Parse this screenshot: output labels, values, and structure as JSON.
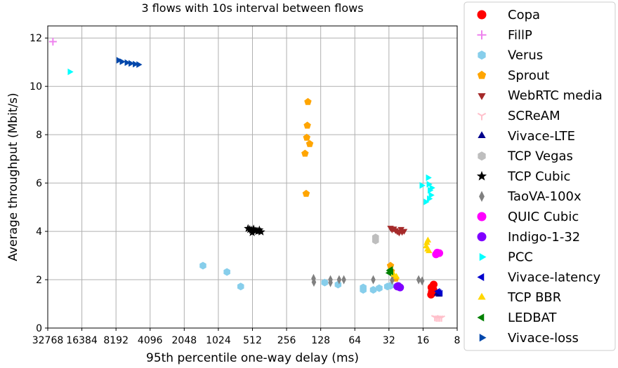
{
  "chart_data": {
    "type": "scatter",
    "title": "3 flows with 10s interval between flows",
    "xlabel": "95th percentile one-way delay (ms)",
    "ylabel": "Average throughput (Mbit/s)",
    "x_scale": "log2",
    "x_reversed": true,
    "xlim": [
      32768,
      8
    ],
    "ylim": [
      0,
      12.5
    ],
    "x_ticks": [
      32768,
      16384,
      8192,
      4096,
      2048,
      1024,
      512,
      256,
      128,
      64,
      32,
      16,
      8
    ],
    "x_tick_labels": [
      "32768",
      "16384",
      "8192",
      "4096",
      "2048",
      "1024",
      "512",
      "256",
      "128",
      "64",
      "32",
      "16",
      "8"
    ],
    "y_ticks": [
      0,
      2,
      4,
      6,
      8,
      10,
      12
    ],
    "y_tick_labels": [
      "0",
      "2",
      "4",
      "6",
      "8",
      "10",
      "12"
    ],
    "grid": true,
    "legend_position": "outside-right",
    "series": [
      {
        "name": "Copa",
        "marker": "circle",
        "color": "#ff0000",
        "points": [
          [
            13.2,
            1.72
          ],
          [
            13.0,
            1.6
          ],
          [
            13.4,
            1.5
          ],
          [
            13.6,
            1.38
          ],
          [
            12.9,
            1.8
          ],
          [
            13.1,
            1.45
          ],
          [
            13.3,
            1.62
          ],
          [
            12.8,
            1.52
          ],
          [
            13.5,
            1.68
          ]
        ]
      },
      {
        "name": "FillP",
        "marker": "plus",
        "color": "#ee82ee",
        "points": [
          [
            29500,
            11.85
          ]
        ]
      },
      {
        "name": "Verus",
        "marker": "hexagon",
        "color": "#87ceeb",
        "points": [
          [
            1400,
            2.58
          ],
          [
            860,
            2.32
          ],
          [
            650,
            1.72
          ],
          [
            118,
            1.88
          ],
          [
            90,
            1.8
          ],
          [
            54,
            1.68
          ],
          [
            54,
            1.58
          ],
          [
            44,
            1.58
          ],
          [
            39,
            1.65
          ],
          [
            33,
            1.72
          ],
          [
            31,
            1.75
          ]
        ]
      },
      {
        "name": "Sprout",
        "marker": "pentagon",
        "color": "#ffa500",
        "points": [
          [
            166,
            9.36
          ],
          [
            168,
            8.38
          ],
          [
            170,
            7.88
          ],
          [
            160,
            7.62
          ],
          [
            176,
            7.22
          ],
          [
            172,
            5.56
          ],
          [
            31,
            2.58
          ],
          [
            30.5,
            2.35
          ],
          [
            28,
            2.05
          ]
        ]
      },
      {
        "name": "WebRTC media",
        "marker": "triangle-down",
        "color": "#a52a2a",
        "points": [
          [
            31,
            4.15
          ],
          [
            29,
            4.12
          ],
          [
            28,
            4.05
          ],
          [
            27,
            4.0
          ],
          [
            26,
            3.95
          ],
          [
            25,
            4.1
          ],
          [
            24.5,
            3.98
          ],
          [
            30,
            4.08
          ],
          [
            23.5,
            4.02
          ]
        ]
      },
      {
        "name": "SCReAM",
        "marker": "tri-down",
        "color": "#ffc0cb",
        "points": [
          [
            12.2,
            0.42
          ],
          [
            11.8,
            0.42
          ],
          [
            11.4,
            0.42
          ],
          [
            12.6,
            0.44
          ],
          [
            11.0,
            0.42
          ]
        ]
      },
      {
        "name": "Vivace-LTE",
        "marker": "triangle-up",
        "color": "#00008b",
        "points": [
          [
            12.0,
            1.42
          ],
          [
            11.6,
            1.38
          ]
        ]
      },
      {
        "name": "TCP Vegas",
        "marker": "hexagon",
        "color": "#bebebe",
        "points": [
          [
            42,
            3.75
          ],
          [
            42,
            3.62
          ]
        ]
      },
      {
        "name": "TCP Cubic",
        "marker": "star",
        "color": "#000000",
        "points": [
          [
            560,
            4.12
          ],
          [
            540,
            4.08
          ],
          [
            520,
            4.05
          ],
          [
            500,
            4.1
          ],
          [
            480,
            4.02
          ],
          [
            460,
            4.0
          ],
          [
            445,
            4.06
          ],
          [
            430,
            3.98
          ],
          [
            515,
            3.95
          ]
        ]
      },
      {
        "name": "TaoVA-100x",
        "marker": "thin-diamond",
        "color": "#808080",
        "points": [
          [
            148,
            2.05
          ],
          [
            147,
            1.9
          ],
          [
            105,
            2.0
          ],
          [
            105,
            1.88
          ],
          [
            88,
            2.0
          ],
          [
            80,
            2.0
          ],
          [
            44,
            2.0
          ],
          [
            30,
            1.98
          ],
          [
            17.5,
            2.0
          ],
          [
            16.3,
            1.95
          ]
        ]
      },
      {
        "name": "QUIC Cubic",
        "marker": "circle",
        "color": "#ff00ff",
        "points": [
          [
            12.0,
            3.12
          ],
          [
            11.5,
            3.1
          ],
          [
            12.3,
            3.05
          ]
        ]
      },
      {
        "name": "Indigo-1-32",
        "marker": "circle",
        "color": "#8000ff",
        "points": [
          [
            27,
            1.72
          ],
          [
            26,
            1.7
          ],
          [
            26.5,
            1.74
          ],
          [
            25.5,
            1.68
          ]
        ]
      },
      {
        "name": "PCC",
        "marker": "triangle-right",
        "color": "#00ffff",
        "points": [
          [
            21000,
            10.6
          ],
          [
            16.5,
            5.9
          ],
          [
            14.5,
            6.22
          ],
          [
            14.3,
            5.95
          ],
          [
            14.0,
            5.7
          ],
          [
            13.7,
            5.5
          ],
          [
            14.2,
            5.35
          ],
          [
            15.2,
            5.22
          ],
          [
            13.5,
            5.8
          ]
        ]
      },
      {
        "name": "Vivace-latency",
        "marker": "triangle-left",
        "color": "#0000cd",
        "points": [
          [
            11.5,
            1.48
          ],
          [
            11.2,
            1.44
          ],
          [
            11.8,
            1.52
          ]
        ]
      },
      {
        "name": "TCP BBR",
        "marker": "triangle-up",
        "color": "#ffd700",
        "points": [
          [
            14.5,
            3.62
          ],
          [
            14.8,
            3.52
          ],
          [
            15.0,
            3.38
          ],
          [
            14.6,
            3.25
          ],
          [
            14.2,
            3.18
          ],
          [
            29,
            2.2
          ],
          [
            27.5,
            2.12
          ]
        ]
      },
      {
        "name": "LEDBAT",
        "marker": "triangle-left",
        "color": "#008000",
        "points": [
          [
            31.5,
            2.38
          ],
          [
            30.5,
            2.32
          ],
          [
            30.8,
            2.42
          ],
          [
            31.8,
            2.28
          ]
        ]
      },
      {
        "name": "Vivace-loss",
        "marker": "triangle-right",
        "color": "#0047ab",
        "points": [
          [
            7800,
            11.08
          ],
          [
            7300,
            11.02
          ],
          [
            6600,
            10.98
          ],
          [
            6100,
            10.95
          ],
          [
            5600,
            10.92
          ],
          [
            5200,
            10.9
          ]
        ]
      }
    ]
  }
}
